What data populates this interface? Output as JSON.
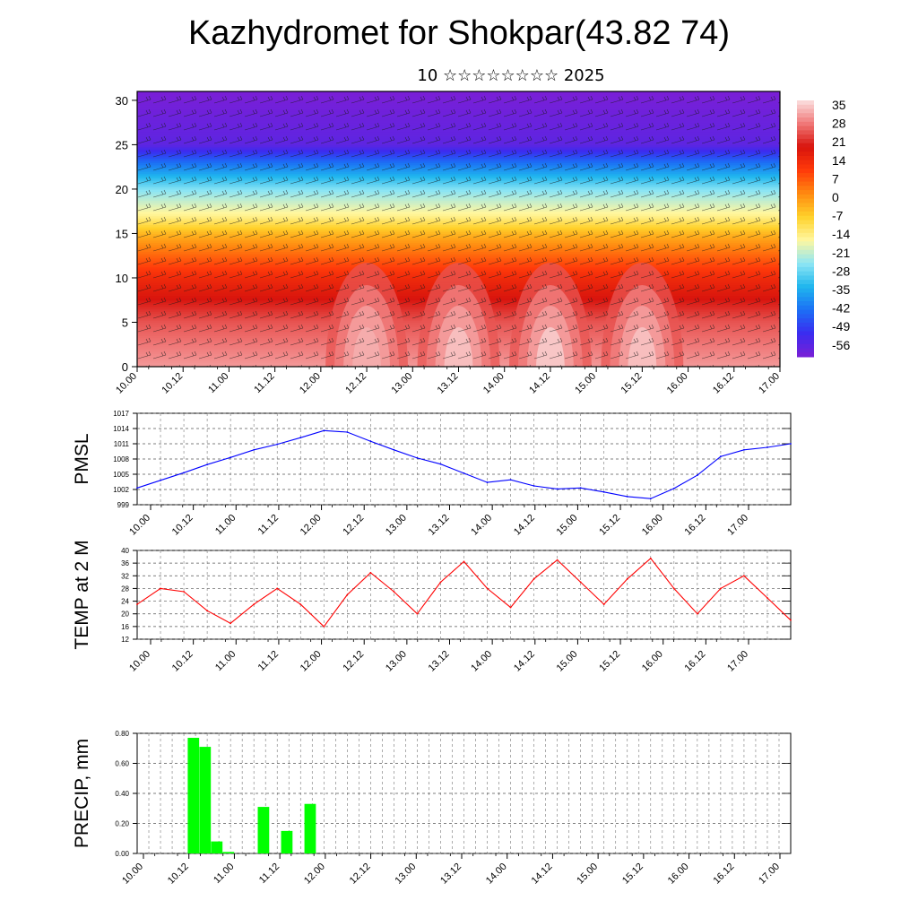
{
  "header": {
    "title": "Kazhydromet for Shokpar(43.82 74)",
    "subtitle": "10 ☆☆☆☆☆☆☆☆ 2025"
  },
  "x_ticks": [
    "10.00",
    "10.12",
    "11.00",
    "11.12",
    "12.00",
    "12.12",
    "13.00",
    "13.12",
    "14.00",
    "14.12",
    "15.00",
    "15.12",
    "16.00",
    "16.12",
    "17.00"
  ],
  "chart_data": [
    {
      "type": "heatmap",
      "title": "",
      "xlabel": "",
      "ylabel": "",
      "ylim": [
        0,
        31
      ],
      "yticks": [
        0,
        5,
        10,
        15,
        20,
        25,
        30
      ],
      "xlim": [
        0,
        168
      ],
      "colorbar": {
        "labels": [
          "35",
          "28",
          "21",
          "14",
          "7",
          "0",
          "-7",
          "-14",
          "-21",
          "-28",
          "-35",
          "-42",
          "-49",
          "-56"
        ],
        "min": -60,
        "max": 38,
        "stops": [
          "#7a1fd6",
          "#3a2cf0",
          "#1c6ff5",
          "#1fb6ee",
          "#8ee6f4",
          "#fff7a0",
          "#ffd12a",
          "#ff8a10",
          "#ff3a0a",
          "#d8140d",
          "#f07878",
          "#fbe0e0"
        ]
      },
      "profile": [
        {
          "level": 0,
          "temp": 32
        },
        {
          "level": 5,
          "temp": 26
        },
        {
          "level": 10,
          "temp": 15
        },
        {
          "level": 13,
          "temp": 5
        },
        {
          "level": 15,
          "temp": -3
        },
        {
          "level": 17,
          "temp": -14
        },
        {
          "level": 20,
          "temp": -25
        },
        {
          "level": 23,
          "temp": -42
        },
        {
          "level": 25,
          "temp": -56
        },
        {
          "level": 28,
          "temp": -58
        },
        {
          "level": 31,
          "temp": -60
        }
      ],
      "warm_cores": [
        {
          "hour": 60,
          "temp": 34
        },
        {
          "hour": 84,
          "temp": 36
        },
        {
          "hour": 108,
          "temp": 37
        },
        {
          "hour": 132,
          "temp": 36
        }
      ],
      "wind_barbs": "dense wind barbs over field"
    },
    {
      "type": "line",
      "title": "",
      "xlabel": "",
      "ylabel": "PMSL",
      "ylim": [
        999,
        1017
      ],
      "yticks": [
        999,
        1002,
        1005,
        1008,
        1011,
        1014,
        1017
      ],
      "x": [
        0,
        6,
        12,
        18,
        24,
        30,
        36,
        42,
        48,
        54,
        60,
        66,
        72,
        78,
        84,
        90,
        96,
        102,
        108,
        114,
        120,
        126,
        132,
        138,
        144,
        150,
        156,
        162,
        168
      ],
      "series": [
        {
          "values": [
            1002.3,
            1003.8,
            1005.3,
            1006.9,
            1008.3,
            1009.8,
            1010.9,
            1012.2,
            1013.6,
            1013.3,
            1011.5,
            1009.8,
            1008.2,
            1007.0,
            1005.2,
            1003.4,
            1003.9,
            1002.7,
            1002.1,
            1002.3,
            1001.5,
            1000.6,
            1000.2,
            1002.2,
            1004.8,
            1008.5,
            1009.8,
            1010.3,
            1011.0
          ],
          "color": "#0000ff"
        }
      ]
    },
    {
      "type": "line",
      "title": "",
      "xlabel": "",
      "ylabel": "TEMP at 2 M",
      "ylim": [
        12,
        40
      ],
      "yticks": [
        12,
        16,
        20,
        24,
        28,
        32,
        36,
        40
      ],
      "x": [
        0,
        6,
        12,
        18,
        24,
        30,
        36,
        42,
        48,
        54,
        60,
        66,
        72,
        78,
        84,
        90,
        96,
        102,
        108,
        114,
        120,
        126,
        132,
        138,
        144,
        150,
        156,
        162,
        168
      ],
      "series": [
        {
          "values": [
            23,
            28,
            27,
            21,
            17,
            23,
            28,
            23,
            16,
            26,
            33,
            27,
            20,
            30,
            36.5,
            28,
            22,
            31,
            37,
            30,
            23,
            31,
            37.5,
            28,
            20,
            28,
            32,
            25,
            18
          ],
          "color": "#ff0000"
        }
      ]
    },
    {
      "type": "bar",
      "title": "",
      "xlabel": "",
      "ylabel": "PRECIP, mm",
      "ylim": [
        0,
        0.8
      ],
      "yticks": [
        "0.00",
        "0.20",
        "0.40",
        "0.60",
        "0.80"
      ],
      "bar_width_hours": 3,
      "x": [
        6,
        9,
        12,
        15,
        24,
        30,
        36
      ],
      "values": [
        0.77,
        0.71,
        0.08,
        0.01,
        0.31,
        0.15,
        0.33
      ],
      "color": "#00ff00"
    }
  ]
}
